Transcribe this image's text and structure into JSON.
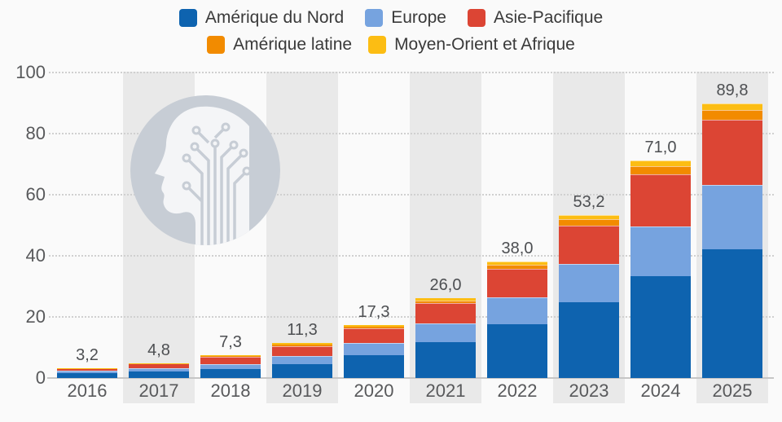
{
  "page": {
    "background": "#fafafa"
  },
  "legend": {
    "rows": [
      [
        {
          "id": "north-america",
          "label": "Amérique du Nord",
          "color": "#0e63af"
        },
        {
          "id": "europe",
          "label": "Europe",
          "color": "#76a3df"
        },
        {
          "id": "asia-pacific",
          "label": "Asie-Pacifique",
          "color": "#dc4534"
        }
      ],
      [
        {
          "id": "latin-america",
          "label": "Amérique latine",
          "color": "#f28b00"
        },
        {
          "id": "middle-east-africa",
          "label": "Moyen-Orient et Afrique",
          "color": "#fcbd13"
        }
      ]
    ]
  },
  "chart_data": {
    "type": "bar",
    "stacked": true,
    "title": "",
    "xlabel": "",
    "ylabel": "",
    "categories": [
      "2016",
      "2017",
      "2018",
      "2019",
      "2020",
      "2021",
      "2022",
      "2023",
      "2024",
      "2025"
    ],
    "series": [
      {
        "name": "Amérique du Nord",
        "color": "#0e63af",
        "values": [
          1.4,
          2.1,
          2.9,
          4.5,
          7.3,
          11.7,
          17.5,
          24.8,
          33.1,
          42.1
        ]
      },
      {
        "name": "Europe",
        "color": "#76a3df",
        "values": [
          0.8,
          0.9,
          1.5,
          2.5,
          4.1,
          6.0,
          8.7,
          12.4,
          16.3,
          20.9
        ]
      },
      {
        "name": "Asie-Pacifique",
        "color": "#dc4534",
        "values": [
          0.9,
          1.6,
          2.3,
          3.4,
          4.7,
          6.6,
          9.5,
          12.6,
          17.2,
          21.5
        ]
      },
      {
        "name": "Amérique latine",
        "color": "#f28b00",
        "values": [
          0.07,
          0.13,
          0.4,
          0.5,
          0.7,
          1.0,
          1.3,
          2.0,
          2.6,
          3.1
        ]
      },
      {
        "name": "Moyen-Orient et Afrique",
        "color": "#fcbd13",
        "values": [
          0.03,
          0.07,
          0.2,
          0.4,
          0.5,
          0.7,
          1.0,
          1.4,
          1.8,
          2.2
        ]
      }
    ],
    "totals": [
      3.2,
      4.8,
      7.3,
      11.3,
      17.3,
      26.0,
      38.0,
      53.2,
      71.0,
      89.8
    ],
    "total_labels": [
      "3,2",
      "4,8",
      "7,3",
      "11,3",
      "17,3",
      "26,0",
      "38,0",
      "53,2",
      "71,0",
      "89,8"
    ],
    "yticks": [
      0,
      20,
      40,
      60,
      80,
      100
    ],
    "ylim": [
      0,
      100
    ],
    "grid": "dotted horizontal lines at each y tick",
    "legend_position": "top",
    "striped_columns": "every second category column shaded light gray"
  },
  "watermark": {
    "name": "ai-head-circuit-watermark"
  }
}
